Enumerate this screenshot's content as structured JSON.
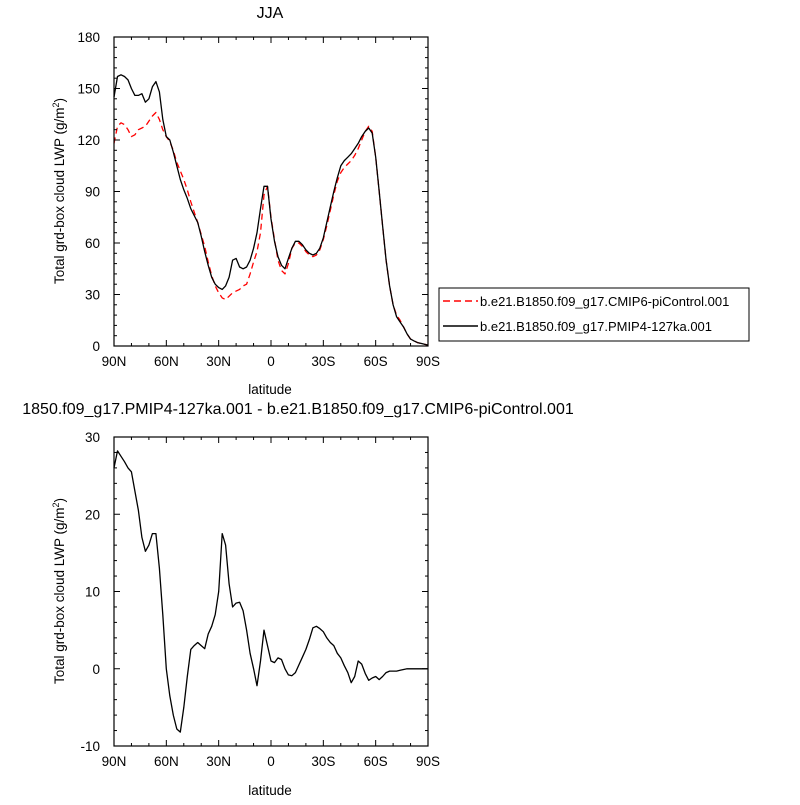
{
  "chart_data": [
    {
      "type": "line",
      "title": "JJA",
      "xlabel": "latitude",
      "ylabel": "Total grd-box cloud LWP (g/m",
      "ylabel_sup": "2",
      "ylabel_tail": ")",
      "xlim": [
        90,
        -90
      ],
      "ylim": [
        0,
        180
      ],
      "x_ticks": [
        90,
        60,
        30,
        0,
        -30,
        -60,
        -90
      ],
      "x_tick_labels": [
        "90N",
        "60N",
        "30N",
        "0",
        "30S",
        "60S",
        "90S"
      ],
      "y_ticks": [
        0,
        30,
        60,
        90,
        120,
        150,
        180
      ],
      "y_tick_labels": [
        "0",
        "30",
        "60",
        "90",
        "120",
        "150",
        "180"
      ],
      "legend_position": "right",
      "series": [
        {
          "name": "b.e21.B1850.f09_g17.CMIP6-piControl.001",
          "color": "#ff0000",
          "dash": "dashed",
          "x": [
            90,
            88,
            86,
            84,
            82,
            80,
            78,
            76,
            74,
            72,
            70,
            68,
            66,
            64,
            62,
            60,
            58,
            56,
            54,
            52,
            50,
            48,
            46,
            44,
            42,
            40,
            38,
            36,
            34,
            32,
            30,
            28,
            26,
            24,
            22,
            20,
            18,
            16,
            14,
            12,
            10,
            8,
            6,
            4,
            2,
            0,
            -2,
            -4,
            -6,
            -8,
            -10,
            -12,
            -14,
            -16,
            -18,
            -20,
            -22,
            -24,
            -26,
            -28,
            -30,
            -32,
            -34,
            -36,
            -38,
            -40,
            -42,
            -44,
            -46,
            -48,
            -50,
            -52,
            -54,
            -56,
            -58,
            -60,
            -62,
            -64,
            -66,
            -68,
            -70,
            -72,
            -74,
            -76,
            -78,
            -80,
            -82,
            -84,
            -86,
            -88,
            -90
          ],
          "y": [
            118,
            128,
            130,
            129,
            126,
            122,
            123,
            126,
            127,
            128,
            131,
            134,
            136,
            132,
            126,
            122,
            119,
            114,
            107,
            102,
            97,
            91,
            84,
            78,
            72,
            65,
            58,
            49,
            41,
            35,
            31,
            28,
            27,
            29,
            31,
            32,
            33,
            35,
            36,
            42,
            49,
            55,
            66,
            88,
            93,
            75,
            62,
            50,
            44,
            42,
            48,
            57,
            60,
            60,
            58,
            55,
            53,
            52,
            53,
            56,
            62,
            70,
            79,
            88,
            96,
            101,
            104,
            106,
            108,
            111,
            115,
            120,
            125,
            128,
            125,
            110,
            90,
            70,
            50,
            35,
            24,
            18,
            15,
            11,
            7,
            4,
            3,
            2,
            1.5,
            1,
            0.5
          ]
        },
        {
          "name": "b.e21.B1850.f09_g17.PMIP4-127ka.001",
          "color": "#000000",
          "dash": "solid",
          "x": [
            90,
            88,
            86,
            84,
            82,
            80,
            78,
            76,
            74,
            72,
            70,
            68,
            66,
            64,
            62,
            60,
            58,
            56,
            54,
            52,
            50,
            48,
            46,
            44,
            42,
            40,
            38,
            36,
            34,
            32,
            30,
            28,
            26,
            24,
            22,
            20,
            18,
            16,
            14,
            12,
            10,
            8,
            6,
            4,
            2,
            0,
            -2,
            -4,
            -6,
            -8,
            -10,
            -12,
            -14,
            -16,
            -18,
            -20,
            -22,
            -24,
            -26,
            -28,
            -30,
            -32,
            -34,
            -36,
            -38,
            -40,
            -42,
            -44,
            -46,
            -48,
            -50,
            -52,
            -54,
            -56,
            -58,
            -60,
            -62,
            -64,
            -66,
            -68,
            -70,
            -72,
            -74,
            -76,
            -78,
            -80,
            -82,
            -84,
            -86,
            -88,
            -90
          ],
          "y": [
            145,
            157,
            158,
            157,
            155,
            150,
            146,
            146,
            147,
            142,
            144,
            151,
            154,
            148,
            132,
            122,
            120,
            113,
            105,
            97,
            91,
            86,
            80,
            76,
            72,
            64,
            55,
            47,
            40,
            36,
            34,
            33,
            35,
            40,
            50,
            51,
            46,
            45,
            46,
            50,
            57,
            66,
            80,
            93,
            93,
            74,
            61,
            52,
            47,
            45,
            51,
            57,
            61,
            61,
            59,
            56,
            54,
            53,
            54,
            57,
            63,
            72,
            81,
            90,
            98,
            105,
            108,
            110,
            112,
            115,
            118,
            122,
            125,
            127,
            124,
            110,
            90,
            70,
            50,
            35,
            24,
            17,
            14,
            11,
            7,
            4,
            3,
            2,
            1.5,
            1,
            0.5
          ]
        }
      ]
    },
    {
      "type": "line",
      "title": "1850.f09_g17.PMIP4-127ka.001 - b.e21.B1850.f09_g17.CMIP6-piControl.001",
      "xlabel": "latitude",
      "ylabel": "Total grd-box cloud LWP (g/m",
      "ylabel_sup": "2",
      "ylabel_tail": ")",
      "xlim": [
        90,
        -90
      ],
      "ylim": [
        -10,
        30
      ],
      "x_ticks": [
        90,
        60,
        30,
        0,
        -30,
        -60,
        -90
      ],
      "x_tick_labels": [
        "90N",
        "60N",
        "30N",
        "0",
        "30S",
        "60S",
        "90S"
      ],
      "y_ticks": [
        -10,
        0,
        10,
        20,
        30
      ],
      "y_tick_labels": [
        "-10",
        "0",
        "10",
        "20",
        "30"
      ],
      "series": [
        {
          "color": "#000000",
          "dash": "solid",
          "x": [
            90,
            88,
            86,
            84,
            82,
            80,
            78,
            76,
            74,
            72,
            70,
            68,
            66,
            64,
            62,
            60,
            58,
            56,
            54,
            52,
            50,
            48,
            46,
            44,
            42,
            40,
            38,
            36,
            34,
            32,
            30,
            28,
            26,
            24,
            22,
            20,
            18,
            16,
            14,
            12,
            10,
            8,
            6,
            4,
            2,
            0,
            -2,
            -4,
            -6,
            -8,
            -10,
            -12,
            -14,
            -16,
            -18,
            -20,
            -22,
            -24,
            -26,
            -28,
            -30,
            -32,
            -34,
            -36,
            -38,
            -40,
            -42,
            -44,
            -46,
            -48,
            -50,
            -52,
            -54,
            -56,
            -58,
            -60,
            -62,
            -64,
            -66,
            -68,
            -70,
            -72,
            -74,
            -76,
            -78,
            -80,
            -82,
            -84,
            -86,
            -88,
            -90
          ],
          "y": [
            26,
            28.2,
            27.5,
            26.8,
            26,
            25.5,
            23,
            20.5,
            17,
            15.2,
            16,
            17.5,
            17.5,
            13,
            7,
            0,
            -3.5,
            -6,
            -7.8,
            -8.2,
            -5,
            -1,
            2.5,
            3,
            3.4,
            3,
            2.6,
            4.5,
            5.5,
            7,
            10,
            17.5,
            16,
            11,
            8,
            8.5,
            8.6,
            7.5,
            5,
            2,
            0,
            -2.2,
            1,
            5,
            3,
            1,
            0.8,
            1.4,
            1.2,
            0,
            -0.8,
            -0.9,
            -0.5,
            0.5,
            1.5,
            2.5,
            3.8,
            5.3,
            5.5,
            5.2,
            4.8,
            4,
            3.4,
            3,
            2,
            1.4,
            0.4,
            -0.5,
            -1.8,
            -1,
            1,
            0.6,
            -0.6,
            -1.5,
            -1.2,
            -1,
            -1.4,
            -1,
            -0.5,
            -0.3,
            -0.3,
            -0.3,
            -0.2,
            -0.1,
            0,
            0,
            0,
            0,
            0,
            0,
            0
          ]
        }
      ]
    }
  ]
}
